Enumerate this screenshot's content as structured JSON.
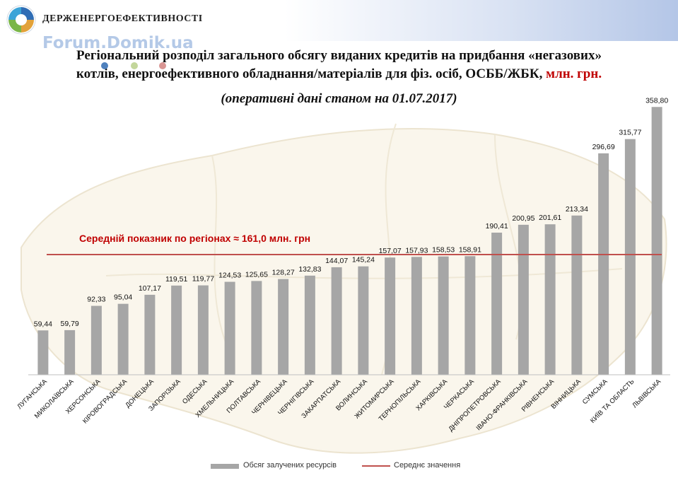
{
  "header": {
    "org_name": "ДЕРЖЕНЕРГОЕФЕКТИВНОСТІ",
    "watermark": "Forum.Domik.ua"
  },
  "title": {
    "line1": "Регіональний розподіл загального обсягу виданих кредитів на придбання «негазових»",
    "line2_main": "котлів,  енергоефективного обладнання/матеріалів для фіз. осіб, ОСББ/ЖБК,",
    "line2_unit": "млн. грн.",
    "subtitle": "(оперативні дані станом на 01.07.2017)"
  },
  "colors": {
    "bar": "#a6a6a6",
    "average_line": "#c0504d",
    "average_label": "#c00000",
    "unit_text": "#c00000"
  },
  "legend": {
    "bar_series": "Обсяг залучених ресурсів",
    "line_series": "Середнє значення"
  },
  "chart_data": {
    "type": "bar",
    "categories": [
      "ЛУГАНСЬКА",
      "МИКОЛАЇВСЬКА",
      "ХЕРСОНСЬКА",
      "КІРОВОГРАДСЬКА",
      "ДОНЕЦЬКА",
      "ЗАПОРІЗЬКА",
      "ОДЕСЬКА",
      "ХМЕЛЬНИЦЬКА",
      "ПОЛТАВСЬКА",
      "ЧЕРНІВЕЦЬКА",
      "ЧЕРНІГІВСЬКА",
      "ЗАКАРПАТСЬКА",
      "ВОЛИНСЬКА",
      "ЖИТОМИРСЬКА",
      "ТЕРНОПІЛЬСЬКА",
      "ХАРКІВСЬКА",
      "ЧЕРКАСЬКА",
      "ДНІПРОПЕТРОВСЬКА",
      "ІВАНО-ФРАНКІВСЬКА",
      "РІВНЕНСЬКА",
      "ВІННИЦЬКА",
      "СУМСЬКА",
      "КИЇВ ТА ОБЛАСТЬ",
      "ЛЬВІВСЬКА"
    ],
    "series": [
      {
        "name": "Обсяг залучених ресурсів",
        "values": [
          59.44,
          59.79,
          92.33,
          95.04,
          107.17,
          119.51,
          119.77,
          124.53,
          125.65,
          128.27,
          132.83,
          144.07,
          145.24,
          157.07,
          157.93,
          158.53,
          158.91,
          190.41,
          200.95,
          201.61,
          213.34,
          296.69,
          315.77,
          358.8
        ],
        "data_labels": [
          "59,44",
          "59,79",
          "92,33",
          "95,04",
          "107,17",
          "119,51",
          "119,77",
          "124,53",
          "125,65",
          "128,27",
          "132,83",
          "144,07",
          "145,24",
          "157,07",
          "157,93",
          "158,53",
          "158,91",
          "190,41",
          "200,95",
          "201,61",
          "213,34",
          "296,69",
          "315,77",
          "358,80"
        ]
      },
      {
        "name": "Середнє значення",
        "type": "line",
        "value": 161.0
      }
    ],
    "average_annotation": "Середній показник по регіонах ≈ 161,0 млн. грн",
    "ylim": [
      0,
      360
    ],
    "grid": false,
    "legend_position": "bottom"
  }
}
